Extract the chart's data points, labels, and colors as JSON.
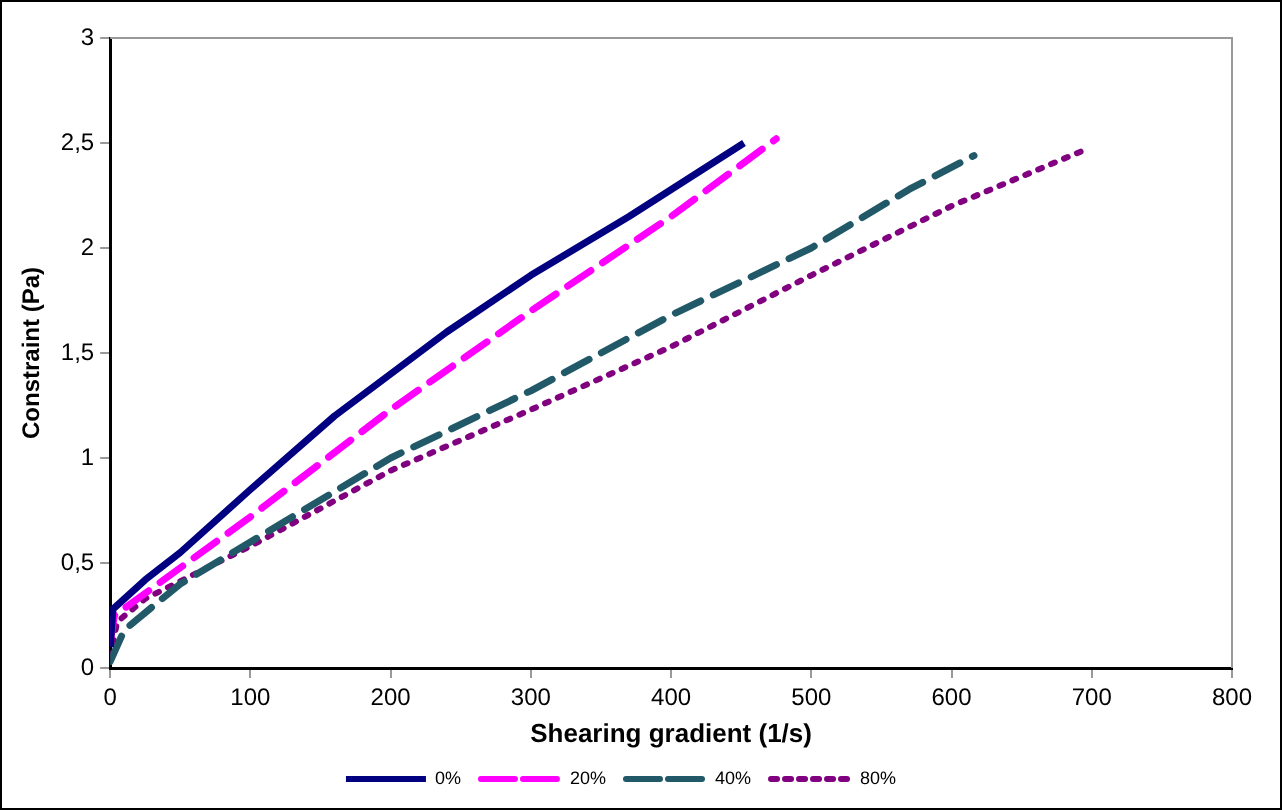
{
  "chart_data": {
    "type": "line",
    "xlabel": "Shearing gradient (1/s)",
    "ylabel": "Constraint (Pa)",
    "xlim": [
      0,
      800
    ],
    "xticks": [
      0,
      100,
      200,
      300,
      400,
      500,
      600,
      700,
      800
    ],
    "ylim": [
      0,
      3
    ],
    "yticks": [
      0,
      {
        "value": 0.5,
        "label": "0,5"
      },
      1,
      {
        "value": 1.5,
        "label": "1,5"
      },
      2,
      {
        "value": 2.5,
        "label": "2,5"
      },
      3
    ],
    "grid": false,
    "legend": "bottom",
    "marker": "none",
    "series": [
      {
        "name": "0%",
        "color": "#000080",
        "line_style": "solid",
        "x": [
          0,
          2,
          25,
          50,
          100,
          160,
          240,
          300,
          370,
          452
        ],
        "values": [
          0.1,
          0.28,
          0.42,
          0.55,
          0.85,
          1.2,
          1.6,
          1.87,
          2.15,
          2.5
        ]
      },
      {
        "name": "20%",
        "color": "#ff00ff",
        "line_style": "dashed",
        "x": [
          0,
          3,
          30,
          100,
          200,
          300,
          400,
          475
        ],
        "values": [
          0.12,
          0.25,
          0.38,
          0.72,
          1.23,
          1.7,
          2.15,
          2.52
        ]
      },
      {
        "name": "40%",
        "color": "#215968",
        "line_style": "dashed",
        "x": [
          0,
          10,
          28,
          50,
          100,
          150,
          200,
          300,
          400,
          500,
          570,
          616
        ],
        "values": [
          0.03,
          0.18,
          0.28,
          0.4,
          0.6,
          0.8,
          1.0,
          1.32,
          1.68,
          2.0,
          2.28,
          2.44
        ]
      },
      {
        "name": "80%",
        "color": "#800080",
        "line_style": "dotted",
        "x": [
          0,
          5,
          25,
          100,
          200,
          300,
          400,
          500,
          600,
          696
        ],
        "values": [
          0.05,
          0.22,
          0.33,
          0.58,
          0.94,
          1.23,
          1.53,
          1.87,
          2.2,
          2.47
        ]
      }
    ]
  }
}
